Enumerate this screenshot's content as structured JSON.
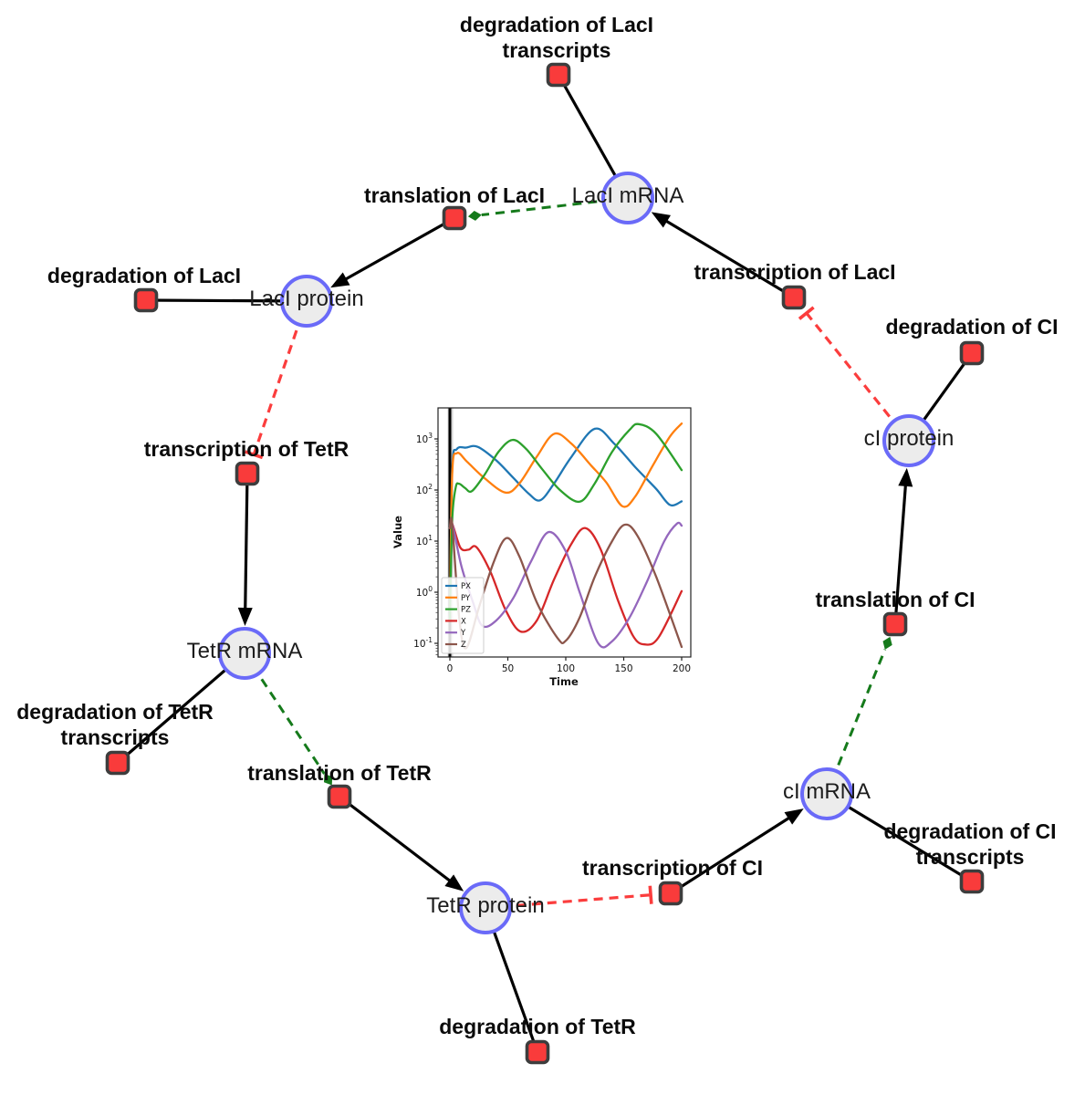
{
  "colors": {
    "species_fill": "#ececec",
    "species_border": "#6a6af8",
    "process_fill": "#f93b3b",
    "process_border": "#3d3d3d",
    "edge_black": "#000000",
    "edge_catalysis_green": "#157a1b",
    "edge_inhibition_red": "#fb3d3d"
  },
  "diagram": {
    "nodes": [
      {
        "id": "lacI_mRNA",
        "kind": "species",
        "lines": [
          "LacI mRNA"
        ]
      },
      {
        "id": "tl_lacI",
        "kind": "process",
        "lines": [
          "translation of LacI"
        ]
      },
      {
        "id": "d_lacI_tr",
        "kind": "process",
        "lines": [
          "degradation of LacI",
          "transcripts"
        ]
      },
      {
        "id": "lacI_protein",
        "kind": "species",
        "lines": [
          "LacI protein"
        ]
      },
      {
        "id": "d_lacI",
        "kind": "process",
        "lines": [
          "degradation of LacI"
        ]
      },
      {
        "id": "tc_tetR",
        "kind": "process",
        "lines": [
          "transcription of TetR"
        ]
      },
      {
        "id": "tetR_mRNA",
        "kind": "species",
        "lines": [
          "TetR mRNA"
        ]
      },
      {
        "id": "d_tetR_tr",
        "kind": "process",
        "lines": [
          "degradation of TetR",
          "transcripts"
        ]
      },
      {
        "id": "tl_tetR",
        "kind": "process",
        "lines": [
          "translation of TetR"
        ]
      },
      {
        "id": "tetR_protein",
        "kind": "species",
        "lines": [
          "TetR protein"
        ]
      },
      {
        "id": "d_tetR",
        "kind": "process",
        "lines": [
          "degradation of TetR"
        ]
      },
      {
        "id": "tc_cI",
        "kind": "process",
        "lines": [
          "transcription of CI"
        ]
      },
      {
        "id": "cI_mRNA",
        "kind": "species",
        "lines": [
          "cI mRNA"
        ]
      },
      {
        "id": "d_cI_tr",
        "kind": "process",
        "lines": [
          "degradation of CI",
          "transcripts"
        ]
      },
      {
        "id": "tl_cI",
        "kind": "process",
        "lines": [
          "translation of CI"
        ]
      },
      {
        "id": "cI_protein",
        "kind": "species",
        "lines": [
          "cI protein"
        ]
      },
      {
        "id": "d_cI",
        "kind": "process",
        "lines": [
          "degradation of CI"
        ]
      },
      {
        "id": "tc_lacI",
        "kind": "process",
        "lines": [
          "transcription of LacI"
        ]
      }
    ],
    "edges": [
      {
        "from": "lacI_mRNA",
        "to": "d_lacI_tr",
        "type": "line"
      },
      {
        "from": "lacI_mRNA",
        "to": "tl_lacI",
        "type": "catalysis"
      },
      {
        "from": "tl_lacI",
        "to": "lacI_protein",
        "type": "arrow"
      },
      {
        "from": "lacI_protein",
        "to": "d_lacI",
        "type": "line"
      },
      {
        "from": "lacI_protein",
        "to": "tc_tetR",
        "type": "inhibition"
      },
      {
        "from": "tc_tetR",
        "to": "tetR_mRNA",
        "type": "arrow"
      },
      {
        "from": "tetR_mRNA",
        "to": "d_tetR_tr",
        "type": "line"
      },
      {
        "from": "tetR_mRNA",
        "to": "tl_tetR",
        "type": "catalysis"
      },
      {
        "from": "tl_tetR",
        "to": "tetR_protein",
        "type": "arrow"
      },
      {
        "from": "tetR_protein",
        "to": "d_tetR",
        "type": "line"
      },
      {
        "from": "tetR_protein",
        "to": "tc_cI",
        "type": "inhibition"
      },
      {
        "from": "tc_cI",
        "to": "cI_mRNA",
        "type": "arrow"
      },
      {
        "from": "cI_mRNA",
        "to": "d_cI_tr",
        "type": "line"
      },
      {
        "from": "cI_mRNA",
        "to": "tl_cI",
        "type": "catalysis"
      },
      {
        "from": "tl_cI",
        "to": "cI_protein",
        "type": "arrow"
      },
      {
        "from": "cI_protein",
        "to": "d_cI",
        "type": "line"
      },
      {
        "from": "cI_protein",
        "to": "tc_lacI",
        "type": "inhibition"
      },
      {
        "from": "tc_lacI",
        "to": "lacI_mRNA",
        "type": "arrow"
      }
    ]
  },
  "chart_data": {
    "type": "line",
    "xlabel": "Time",
    "ylabel": "Value",
    "x_ticks": [
      "0",
      "50",
      "100",
      "150",
      "200"
    ],
    "x_tick_values": [
      0,
      50,
      100,
      150,
      200
    ],
    "y_scale": "log",
    "y_tick_exponents": [
      3,
      2,
      1,
      0,
      -1
    ],
    "xlim": [
      -10,
      208
    ],
    "ylim": [
      0.054,
      3900
    ],
    "event_line_x": 0,
    "legend_position": "lower left",
    "grid": false,
    "series": [
      {
        "name": "PX",
        "color": "#1f77b4",
        "points": [
          [
            0,
            0.3
          ],
          [
            2,
            250
          ],
          [
            6,
            630
          ],
          [
            14,
            676
          ],
          [
            24,
            700
          ],
          [
            40,
            380
          ],
          [
            55,
            170
          ],
          [
            68,
            85
          ],
          [
            78,
            63
          ],
          [
            90,
            135
          ],
          [
            105,
            450
          ],
          [
            125,
            1580
          ],
          [
            142,
            800
          ],
          [
            160,
            280
          ],
          [
            178,
            105
          ],
          [
            190,
            51
          ],
          [
            200,
            60
          ]
        ]
      },
      {
        "name": "PY",
        "color": "#ff7f0e",
        "points": [
          [
            0,
            0.3
          ],
          [
            2,
            200
          ],
          [
            6,
            525
          ],
          [
            15,
            355
          ],
          [
            30,
            170
          ],
          [
            48,
            89
          ],
          [
            60,
            135
          ],
          [
            75,
            450
          ],
          [
            90,
            1260
          ],
          [
            105,
            800
          ],
          [
            122,
            300
          ],
          [
            135,
            140
          ],
          [
            149,
            48
          ],
          [
            160,
            75
          ],
          [
            175,
            300
          ],
          [
            190,
            1120
          ],
          [
            200,
            2000
          ]
        ]
      },
      {
        "name": "PZ",
        "color": "#2ca02c",
        "points": [
          [
            0,
            0.3
          ],
          [
            2,
            25
          ],
          [
            5,
            112
          ],
          [
            8,
            132
          ],
          [
            13,
            110
          ],
          [
            19,
            95
          ],
          [
            30,
            200
          ],
          [
            42,
            560
          ],
          [
            54,
            955
          ],
          [
            66,
            630
          ],
          [
            80,
            250
          ],
          [
            95,
            100
          ],
          [
            112,
            59
          ],
          [
            125,
            135
          ],
          [
            140,
            560
          ],
          [
            155,
            1500
          ],
          [
            163,
            1950
          ],
          [
            178,
            1260
          ],
          [
            200,
            245
          ]
        ]
      },
      {
        "name": "X",
        "color": "#d62728",
        "points": [
          [
            0,
            18
          ],
          [
            2,
            22
          ],
          [
            9,
            7.5
          ],
          [
            16,
            6.8
          ],
          [
            23,
            7.6
          ],
          [
            35,
            2.5
          ],
          [
            48,
            0.45
          ],
          [
            61,
            0.17
          ],
          [
            75,
            0.28
          ],
          [
            90,
            1.8
          ],
          [
            105,
            9
          ],
          [
            117,
            18
          ],
          [
            130,
            7
          ],
          [
            145,
            0.7
          ],
          [
            158,
            0.14
          ],
          [
            168,
            0.095
          ],
          [
            180,
            0.13
          ],
          [
            200,
            1.05
          ]
        ]
      },
      {
        "name": "Y",
        "color": "#9467bd",
        "points": [
          [
            0,
            18
          ],
          [
            2,
            22
          ],
          [
            10,
            3.2
          ],
          [
            20,
            0.63
          ],
          [
            28,
            0.22
          ],
          [
            40,
            0.28
          ],
          [
            55,
            0.79
          ],
          [
            70,
            4
          ],
          [
            85,
            15
          ],
          [
            100,
            6.3
          ],
          [
            112,
            1
          ],
          [
            128,
            0.1
          ],
          [
            140,
            0.11
          ],
          [
            155,
            0.32
          ],
          [
            170,
            1.6
          ],
          [
            185,
            10
          ],
          [
            196,
            22
          ],
          [
            200,
            20
          ]
        ]
      },
      {
        "name": "Z",
        "color": "#8c564b",
        "points": [
          [
            0,
            18
          ],
          [
            2,
            22
          ],
          [
            8,
            0.32
          ],
          [
            14,
            0.08
          ],
          [
            25,
            0.5
          ],
          [
            38,
            4
          ],
          [
            49,
            11.5
          ],
          [
            60,
            5
          ],
          [
            75,
            0.63
          ],
          [
            93,
            0.126
          ],
          [
            100,
            0.112
          ],
          [
            112,
            0.32
          ],
          [
            125,
            2
          ],
          [
            140,
            10
          ],
          [
            151,
            21
          ],
          [
            162,
            12.6
          ],
          [
            178,
            2
          ],
          [
            200,
            0.085
          ]
        ]
      }
    ]
  }
}
